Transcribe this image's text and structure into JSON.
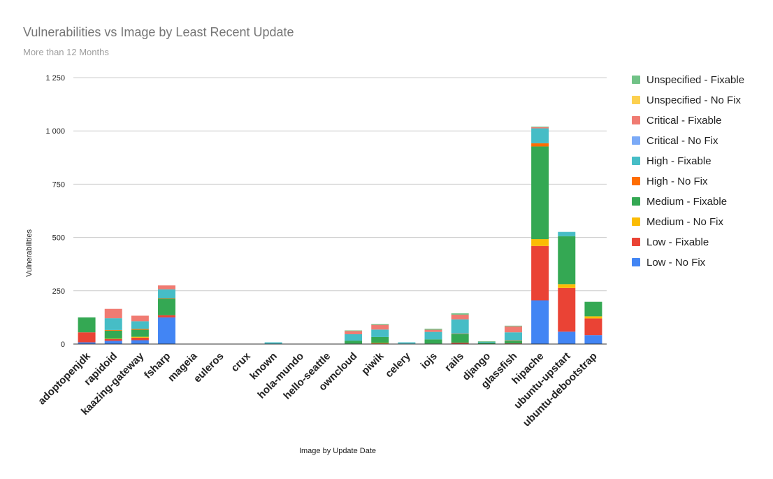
{
  "chart_data": {
    "type": "bar",
    "stacked": true,
    "title": "Vulnerabilities vs Image by Least Recent Update",
    "subtitle": "More than 12 Months",
    "xlabel": "Image by Update Date",
    "ylabel": "Vulnerabilities",
    "ylim": [
      0,
      1250
    ],
    "yticks": [
      0,
      250,
      500,
      750,
      1000,
      1250
    ],
    "grid": true,
    "legend_position": "right",
    "categories": [
      "adoptopenjdk",
      "rapidoid",
      "kaazing-gateway",
      "fsharp",
      "mageia",
      "euleros",
      "crux",
      "known",
      "hola-mundo",
      "hello-seattle",
      "owncloud",
      "piwik",
      "celery",
      "iojs",
      "rails",
      "django",
      "glassfish",
      "hipache",
      "ubuntu-upstart",
      "ubuntu-debootstrap"
    ],
    "series": [
      {
        "name": "Low - No Fix",
        "color": "#4285f4",
        "values": [
          8,
          15,
          18,
          125,
          0,
          0,
          0,
          0,
          0,
          0,
          0,
          0,
          0,
          0,
          0,
          0,
          0,
          205,
          58,
          42
        ]
      },
      {
        "name": "Low - Fixable",
        "color": "#ea4335",
        "values": [
          47,
          8,
          12,
          10,
          0,
          0,
          0,
          0,
          0,
          0,
          2,
          3,
          0,
          2,
          6,
          0,
          3,
          255,
          205,
          78
        ]
      },
      {
        "name": "Medium - No Fix",
        "color": "#fbbc04",
        "values": [
          0,
          2,
          4,
          0,
          0,
          0,
          0,
          0,
          0,
          0,
          0,
          2,
          0,
          0,
          0,
          0,
          0,
          32,
          18,
          10
        ]
      },
      {
        "name": "Medium - Fixable",
        "color": "#34a853",
        "values": [
          70,
          38,
          33,
          78,
          0,
          0,
          0,
          0,
          0,
          0,
          14,
          28,
          2,
          20,
          40,
          7,
          12,
          435,
          225,
          68
        ]
      },
      {
        "name": "High - No Fix",
        "color": "#ff6d01",
        "values": [
          0,
          3,
          4,
          2,
          0,
          0,
          0,
          0,
          0,
          0,
          0,
          0,
          0,
          0,
          2,
          0,
          2,
          15,
          0,
          0
        ]
      },
      {
        "name": "High - Fixable",
        "color": "#46bdc6",
        "values": [
          0,
          55,
          36,
          42,
          0,
          0,
          0,
          8,
          0,
          0,
          30,
          35,
          6,
          35,
          68,
          3,
          38,
          70,
          20,
          0
        ]
      },
      {
        "name": "Critical - No Fix",
        "color": "#7baaf7",
        "values": [
          0,
          0,
          0,
          0,
          0,
          0,
          0,
          0,
          0,
          0,
          0,
          0,
          0,
          0,
          0,
          0,
          0,
          0,
          0,
          0
        ]
      },
      {
        "name": "Critical - Fixable",
        "color": "#f07b72",
        "values": [
          0,
          44,
          26,
          18,
          0,
          0,
          0,
          0,
          0,
          0,
          15,
          22,
          0,
          10,
          22,
          0,
          28,
          5,
          0,
          0
        ]
      },
      {
        "name": "Unspecified - No Fix",
        "color": "#fcd04f",
        "values": [
          0,
          0,
          0,
          0,
          0,
          0,
          0,
          0,
          0,
          0,
          0,
          0,
          0,
          0,
          0,
          0,
          0,
          0,
          0,
          0
        ]
      },
      {
        "name": "Unspecified - Fixable",
        "color": "#71c287",
        "values": [
          0,
          0,
          0,
          0,
          0,
          0,
          0,
          0,
          0,
          0,
          3,
          4,
          0,
          5,
          6,
          3,
          3,
          3,
          0,
          0
        ]
      }
    ]
  }
}
